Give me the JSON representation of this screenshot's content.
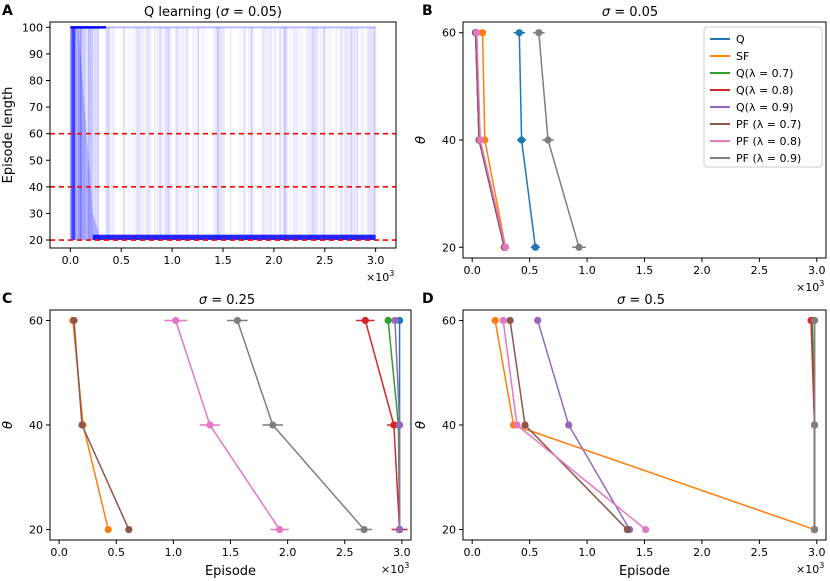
{
  "colors": {
    "Q": "#1f77b4",
    "SF": "#ff7f0e",
    "Q07": "#2ca02c",
    "Q08": "#d62728",
    "Q09": "#9467bd",
    "PF07": "#8c564b",
    "PF08": "#e377c2",
    "PF09": "#7f7f7f",
    "dashed": "#ff0000",
    "trace": "#0000ff"
  },
  "common": {
    "x_multiplier": "×10",
    "x_multiplier_exp": "3",
    "x_ticks": [
      "0.0",
      "0.5",
      "1.0",
      "1.5",
      "2.0",
      "2.5",
      "3.0"
    ],
    "episode_label": "Episode",
    "theta_label": "θ"
  },
  "legend": [
    {
      "key": "Q",
      "label": "Q"
    },
    {
      "key": "SF",
      "label": "SF"
    },
    {
      "key": "Q07",
      "label": "Q(λ = 0.7)"
    },
    {
      "key": "Q08",
      "label": "Q(λ = 0.8)"
    },
    {
      "key": "Q09",
      "label": "Q(λ = 0.9)"
    },
    {
      "key": "PF07",
      "label": "PF (λ = 0.7)"
    },
    {
      "key": "PF08",
      "label": "PF (λ = 0.8)"
    },
    {
      "key": "PF09",
      "label": "PF (λ = 0.9)"
    }
  ],
  "chart_data": [
    {
      "panel": "A",
      "type": "line",
      "title_prefix": "Q learning (",
      "title_sigma": "σ",
      "title_suffix": " = 0.05)",
      "xlabel": "",
      "ylabel": "Episode length",
      "xlim": [
        -0.2,
        3.2
      ],
      "ylim": [
        17,
        102
      ],
      "y_ticks": [
        20,
        30,
        40,
        50,
        60,
        70,
        80,
        90,
        100
      ],
      "reference_lines": [
        20,
        40,
        60
      ],
      "trace_episodes": 3000,
      "max_length": 100,
      "converged_length": 20
    },
    {
      "panel": "B",
      "type": "line",
      "title_sigma": "σ",
      "title_suffix": " = 0.05",
      "xlabel": "",
      "ylabel": "θ",
      "xlim": [
        -0.08,
        3.08
      ],
      "ylim": [
        18,
        62
      ],
      "y_ticks": [
        20,
        40,
        60
      ],
      "series": [
        {
          "key": "Q",
          "x": [
            0.41,
            0.43,
            0.55
          ],
          "y": [
            60,
            40,
            20
          ],
          "err": [
            0.05,
            0.04,
            0.04
          ]
        },
        {
          "key": "SF",
          "x": [
            0.09,
            0.11,
            0.29
          ],
          "y": [
            60,
            40,
            20
          ],
          "err": [
            0.02,
            0.02,
            0.02
          ]
        },
        {
          "key": "Q07",
          "x": [
            0.03,
            0.06,
            0.28
          ],
          "y": [
            60,
            40,
            20
          ],
          "err": [
            0.01,
            0.01,
            0.01
          ]
        },
        {
          "key": "Q08",
          "x": [
            0.03,
            0.06,
            0.28
          ],
          "y": [
            60,
            40,
            20
          ],
          "err": [
            0.01,
            0.01,
            0.01
          ]
        },
        {
          "key": "Q09",
          "x": [
            0.03,
            0.06,
            0.28
          ],
          "y": [
            60,
            40,
            20
          ],
          "err": [
            0.01,
            0.01,
            0.01
          ]
        },
        {
          "key": "PF07",
          "x": [
            0.03,
            0.06,
            0.28
          ],
          "y": [
            60,
            40,
            20
          ],
          "err": [
            0.01,
            0.01,
            0.01
          ]
        },
        {
          "key": "PF08",
          "x": [
            0.04,
            0.07,
            0.29
          ],
          "y": [
            60,
            40,
            20
          ],
          "err": [
            0.01,
            0.01,
            0.01
          ]
        },
        {
          "key": "PF09",
          "x": [
            0.58,
            0.66,
            0.93
          ],
          "y": [
            60,
            40,
            20
          ],
          "err": [
            0.05,
            0.05,
            0.06
          ]
        }
      ]
    },
    {
      "panel": "C",
      "type": "line",
      "title_sigma": "σ",
      "title_suffix": " = 0.25",
      "xlabel": "Episode",
      "ylabel": "θ",
      "xlim": [
        -0.08,
        3.08
      ],
      "ylim": [
        18,
        62
      ],
      "y_ticks": [
        20,
        40,
        60
      ],
      "series": [
        {
          "key": "Q",
          "x": [
            2.98,
            2.98,
            2.98
          ],
          "y": [
            60,
            40,
            20
          ],
          "err": [
            0.02,
            0.02,
            0.02
          ]
        },
        {
          "key": "SF",
          "x": [
            0.12,
            0.21,
            0.43
          ],
          "y": [
            60,
            40,
            20
          ],
          "err": [
            0.02,
            0.02,
            0.02
          ]
        },
        {
          "key": "Q07",
          "x": [
            2.88,
            2.97,
            2.98
          ],
          "y": [
            60,
            40,
            20
          ],
          "err": [
            0.03,
            0.02,
            0.02
          ]
        },
        {
          "key": "Q08",
          "x": [
            2.68,
            2.93,
            2.98
          ],
          "y": [
            60,
            40,
            20
          ],
          "err": [
            0.08,
            0.06,
            0.07
          ]
        },
        {
          "key": "Q09",
          "x": [
            2.94,
            2.98,
            2.98
          ],
          "y": [
            60,
            40,
            20
          ],
          "err": [
            0.02,
            0.02,
            0.02
          ]
        },
        {
          "key": "PF07",
          "x": [
            0.13,
            0.2,
            0.61
          ],
          "y": [
            60,
            40,
            20
          ],
          "err": [
            0.02,
            0.02,
            0.02
          ]
        },
        {
          "key": "PF08",
          "x": [
            1.02,
            1.32,
            1.93
          ],
          "y": [
            60,
            40,
            20
          ],
          "err": [
            0.1,
            0.09,
            0.08
          ]
        },
        {
          "key": "PF09",
          "x": [
            1.56,
            1.87,
            2.67
          ],
          "y": [
            60,
            40,
            20
          ],
          "err": [
            0.09,
            0.09,
            0.07
          ]
        }
      ]
    },
    {
      "panel": "D",
      "type": "line",
      "title_sigma": "σ",
      "title_suffix": " = 0.5",
      "xlabel": "Episode",
      "ylabel": "θ",
      "xlim": [
        -0.08,
        3.08
      ],
      "ylim": [
        18,
        62
      ],
      "y_ticks": [
        20,
        40,
        60
      ],
      "series": [
        {
          "key": "Q",
          "x": [
            2.98,
            2.98,
            2.98
          ],
          "y": [
            60,
            40,
            20
          ],
          "err": [
            0.02,
            0.02,
            0.02
          ]
        },
        {
          "key": "SF",
          "x": [
            0.2,
            0.36,
            2.98
          ],
          "y": [
            60,
            40,
            20
          ],
          "err": [
            0.02,
            0.02,
            0.02
          ]
        },
        {
          "key": "Q07",
          "x": [
            2.96,
            2.98,
            2.98
          ],
          "y": [
            60,
            40,
            20
          ],
          "err": [
            0.02,
            0.02,
            0.02
          ]
        },
        {
          "key": "Q08",
          "x": [
            2.95,
            2.98,
            2.98
          ],
          "y": [
            60,
            40,
            20
          ],
          "err": [
            0.02,
            0.02,
            0.02
          ]
        },
        {
          "key": "Q09",
          "x": [
            0.57,
            0.84,
            1.37
          ],
          "y": [
            60,
            40,
            20
          ],
          "err": [
            0.02,
            0.02,
            0.02
          ]
        },
        {
          "key": "PF07",
          "x": [
            0.33,
            0.46,
            1.35
          ],
          "y": [
            60,
            40,
            20
          ],
          "err": [
            0.02,
            0.02,
            0.02
          ]
        },
        {
          "key": "PF08",
          "x": [
            0.27,
            0.39,
            1.51
          ],
          "y": [
            60,
            40,
            20
          ],
          "err": [
            0.02,
            0.02,
            0.02
          ]
        },
        {
          "key": "PF09",
          "x": [
            2.98,
            2.98,
            2.98
          ],
          "y": [
            60,
            40,
            20
          ],
          "err": [
            0.02,
            0.02,
            0.02
          ]
        }
      ]
    }
  ]
}
